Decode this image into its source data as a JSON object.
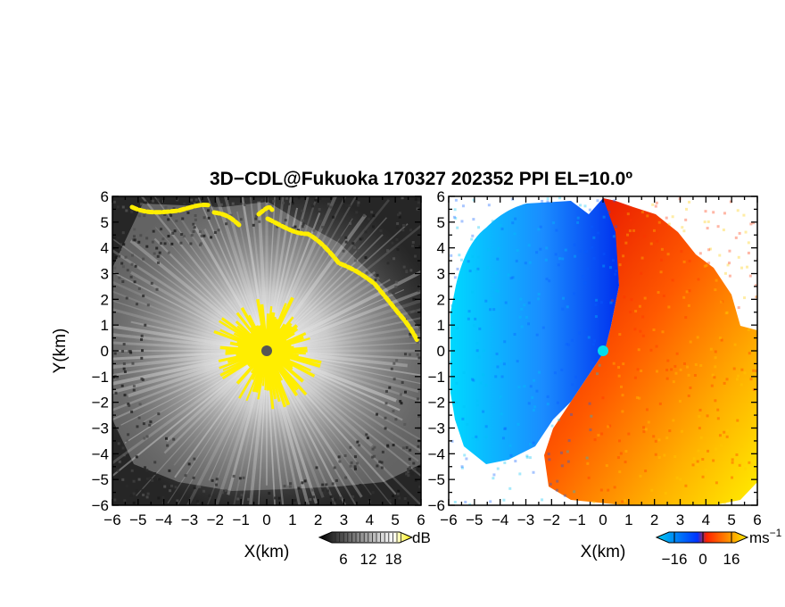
{
  "chart_data": {
    "type": "heatmap",
    "title": "3D−CDL@Fukuoka 170327 202352 PPI EL=10.0º",
    "panels": [
      {
        "id": "reflectivity",
        "xlabel": "X(km)",
        "ylabel": "Y(km)",
        "xlim": [
          -6,
          6
        ],
        "ylim": [
          -6,
          6
        ],
        "x_ticks": [
          "−6",
          "−5",
          "−4",
          "−3",
          "−2",
          "−1",
          "0",
          "1",
          "2",
          "3",
          "4",
          "5",
          "6"
        ],
        "y_ticks": [
          "6",
          "5",
          "4",
          "3",
          "2",
          "1",
          "0",
          "−1",
          "−2",
          "−3",
          "−4",
          "−5",
          "−6"
        ],
        "colorbar": {
          "unit": "dB",
          "tick_labels": [
            "6",
            "12",
            "18"
          ],
          "colors": [
            "#000000",
            "#ffffff",
            "#ffee00"
          ]
        }
      },
      {
        "id": "velocity",
        "xlabel": "X(km)",
        "ylabel": "",
        "xlim": [
          -6,
          6
        ],
        "ylim": [
          -6,
          6
        ],
        "x_ticks": [
          "−6",
          "−5",
          "−4",
          "−3",
          "−2",
          "−1",
          "0",
          "1",
          "2",
          "3",
          "4",
          "5",
          "6"
        ],
        "y_ticks": [
          "6",
          "5",
          "4",
          "3",
          "2",
          "1",
          "0",
          "−1",
          "−2",
          "−3",
          "−4",
          "−5",
          "−6"
        ],
        "colorbar": {
          "unit": "ms",
          "unit_exp": "−1",
          "tick_labels": [
            "−16",
            "0",
            "16"
          ],
          "colors": [
            "#00ccee",
            "#0033ff",
            "#ff2200",
            "#ffee00"
          ]
        }
      }
    ]
  }
}
